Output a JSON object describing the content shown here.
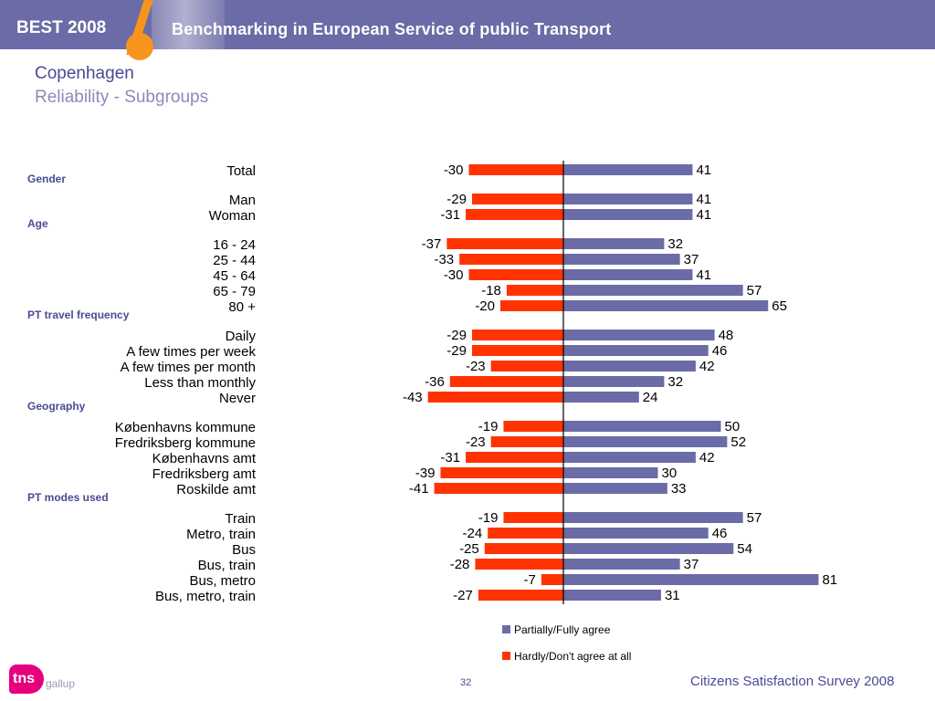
{
  "header": {
    "brand": "BEST 2008",
    "title": "Benchmarking in European Service of public Transport"
  },
  "page": {
    "city": "Copenhagen",
    "subtitle": "Reliability - Subgroups"
  },
  "colors": {
    "agree": "#6b6ba8",
    "disagree": "#ff3300",
    "header": "#6b6ba8",
    "accent": "#f7941d"
  },
  "chart_data": {
    "type": "bar",
    "orientation": "horizontal-diverging",
    "groups": [
      {
        "name": "",
        "categories": [
          "Total"
        ]
      },
      {
        "name": "Gender",
        "categories": [
          "Man",
          "Woman"
        ]
      },
      {
        "name": "Age",
        "categories": [
          "16 - 24",
          "25 - 44",
          "45 - 64",
          "65 - 79",
          "80 +"
        ]
      },
      {
        "name": "PT travel frequency",
        "categories": [
          "Daily",
          "A few times per week",
          "A few times per month",
          "Less than monthly",
          "Never"
        ]
      },
      {
        "name": "Geography",
        "categories": [
          "Københavns kommune",
          "Fredriksberg kommune",
          "Københavns amt",
          "Fredriksberg amt",
          "Roskilde amt"
        ]
      },
      {
        "name": "PT modes used",
        "categories": [
          "Train",
          "Metro, train",
          "Bus",
          "Bus, train",
          "Bus, metro",
          "Bus, metro, train"
        ]
      }
    ],
    "series": [
      {
        "name": "Partially/Fully agree",
        "color": "#6b6ba8",
        "values": [
          41,
          41,
          41,
          32,
          37,
          41,
          57,
          65,
          48,
          46,
          42,
          32,
          24,
          50,
          52,
          42,
          30,
          33,
          57,
          46,
          54,
          37,
          81,
          31
        ]
      },
      {
        "name": "Hardly/Don't agree at all",
        "color": "#ff3300",
        "values": [
          -30,
          -29,
          -31,
          -37,
          -33,
          -30,
          -18,
          -20,
          -29,
          -29,
          -23,
          -36,
          -43,
          -19,
          -23,
          -31,
          -39,
          -41,
          -19,
          -24,
          -25,
          -28,
          -7,
          -27
        ]
      }
    ],
    "xlim": [
      -43,
      81
    ],
    "legend": "bottom"
  },
  "footer": {
    "logo": "tns",
    "logo_sub": "gallup",
    "page_number": "32",
    "survey": "Citizens Satisfaction Survey 2008"
  }
}
